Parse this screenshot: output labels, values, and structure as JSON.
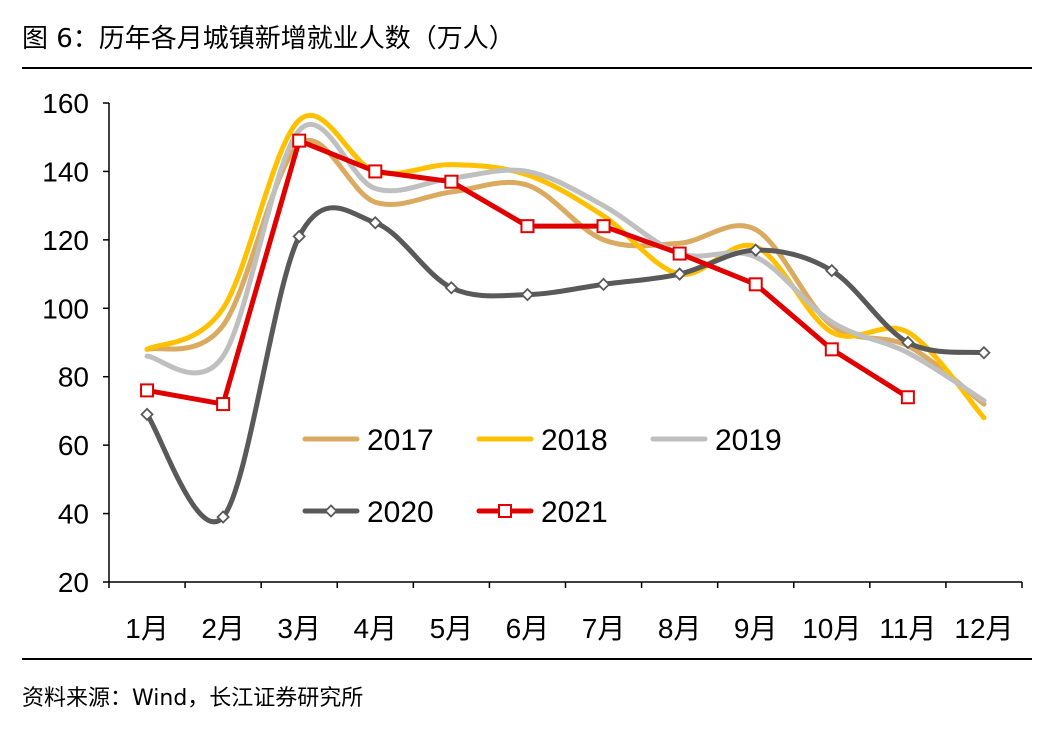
{
  "title": "图 6：历年各月城镇新增就业人数（万人）",
  "source": "资料来源：Wind，长江证券研究所",
  "chart_data": {
    "type": "line",
    "title": "历年各月城镇新增就业人数（万人）",
    "xlabel": "",
    "ylabel": "",
    "categories": [
      "1月",
      "2月",
      "3月",
      "4月",
      "5月",
      "6月",
      "7月",
      "8月",
      "9月",
      "10月",
      "11月",
      "12月"
    ],
    "yticks": [
      20,
      40,
      60,
      80,
      100,
      120,
      140,
      160
    ],
    "ylim": [
      20,
      160
    ],
    "grid": false,
    "legend_position": "center",
    "series": [
      {
        "name": "2017",
        "color": "#D9AA60",
        "smooth": true,
        "marker": "none",
        "x": [
          1,
          2,
          3,
          4,
          5,
          6,
          7,
          8,
          9,
          10,
          11,
          12
        ],
        "values": [
          88,
          95,
          148,
          131,
          134,
          136,
          120,
          119,
          123,
          95,
          89,
          72
        ]
      },
      {
        "name": "2018",
        "color": "#FFC000",
        "smooth": true,
        "marker": "none",
        "x": [
          1,
          2,
          3,
          4,
          5,
          6,
          7,
          8,
          9,
          10,
          11,
          12
        ],
        "values": [
          88,
          100,
          155,
          140,
          142,
          139,
          127,
          110,
          118,
          93,
          93,
          68
        ]
      },
      {
        "name": "2019",
        "color": "#BFBFBF",
        "smooth": true,
        "marker": "none",
        "x": [
          1,
          2,
          3,
          4,
          5,
          6,
          7,
          8,
          9,
          10,
          11,
          12
        ],
        "values": [
          86,
          86,
          152,
          135,
          138,
          140,
          130,
          116,
          115,
          96,
          87,
          73
        ]
      },
      {
        "name": "2020",
        "color": "#595959",
        "smooth": true,
        "marker": "diamond",
        "x": [
          1,
          2,
          3,
          4,
          5,
          6,
          7,
          8,
          9,
          10,
          11,
          12
        ],
        "values": [
          69,
          39,
          121,
          125,
          106,
          104,
          107,
          110,
          117,
          111,
          90,
          87
        ]
      },
      {
        "name": "2021",
        "color": "#E00000",
        "smooth": false,
        "marker": "square",
        "x": [
          1,
          2,
          3,
          4,
          5,
          6,
          7,
          8,
          9,
          10,
          11
        ],
        "values": [
          76,
          72,
          149,
          140,
          137,
          124,
          124,
          116,
          107,
          88,
          74
        ]
      }
    ]
  }
}
